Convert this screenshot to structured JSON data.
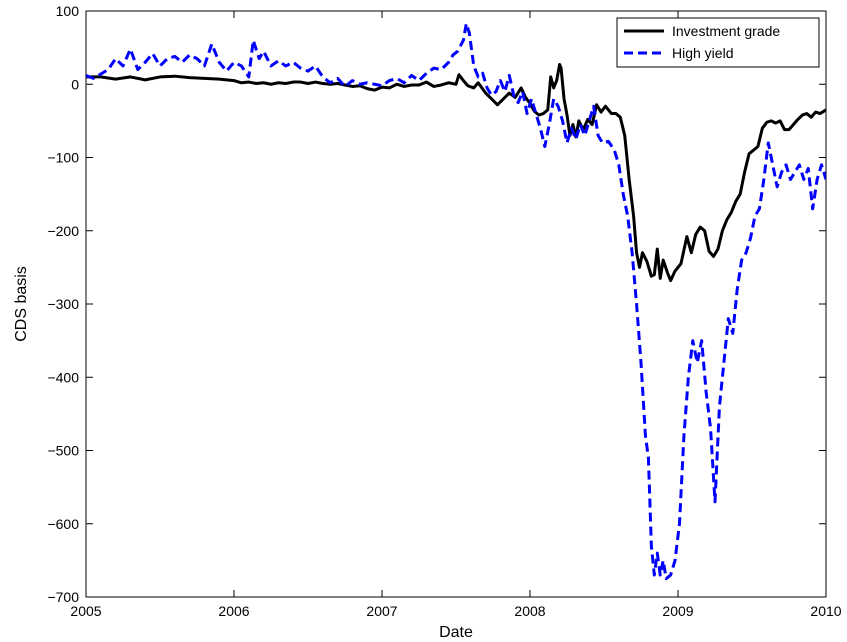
{
  "chart_data": {
    "type": "line",
    "title": "",
    "xlabel": "Date",
    "ylabel": "CDS basis",
    "xlim": [
      2005,
      2010
    ],
    "ylim": [
      -700,
      100
    ],
    "x_ticks": [
      2005,
      2006,
      2007,
      2008,
      2009,
      2010
    ],
    "x_tick_labels": [
      "2005",
      "2006",
      "2007",
      "2008",
      "2009",
      "2010"
    ],
    "y_ticks": [
      100,
      0,
      -100,
      -200,
      -300,
      -400,
      -500,
      -600,
      -700
    ],
    "y_tick_labels": [
      "100",
      "0",
      "−100",
      "−200",
      "−300",
      "−400",
      "−500",
      "−600",
      "−700"
    ],
    "grid": false,
    "legend_position": "top-right",
    "series": [
      {
        "name": "Investment grade",
        "color": "#000000",
        "style": "solid",
        "points": [
          [
            2005.0,
            10
          ],
          [
            2005.1,
            10
          ],
          [
            2005.2,
            7
          ],
          [
            2005.3,
            10
          ],
          [
            2005.4,
            6
          ],
          [
            2005.5,
            10
          ],
          [
            2005.6,
            11
          ],
          [
            2005.7,
            9
          ],
          [
            2005.8,
            8
          ],
          [
            2005.9,
            7
          ],
          [
            2006.0,
            5
          ],
          [
            2006.05,
            2
          ],
          [
            2006.1,
            3
          ],
          [
            2006.15,
            1
          ],
          [
            2006.2,
            2
          ],
          [
            2006.25,
            0
          ],
          [
            2006.3,
            2
          ],
          [
            2006.35,
            1
          ],
          [
            2006.4,
            3
          ],
          [
            2006.45,
            3
          ],
          [
            2006.5,
            1
          ],
          [
            2006.55,
            3
          ],
          [
            2006.6,
            1
          ],
          [
            2006.65,
            0
          ],
          [
            2006.7,
            1
          ],
          [
            2006.75,
            -1
          ],
          [
            2006.8,
            -3
          ],
          [
            2006.85,
            -2
          ],
          [
            2006.9,
            -6
          ],
          [
            2006.95,
            -8
          ],
          [
            2007.0,
            -4
          ],
          [
            2007.05,
            -5
          ],
          [
            2007.1,
            0
          ],
          [
            2007.15,
            -3
          ],
          [
            2007.2,
            -1
          ],
          [
            2007.25,
            -1
          ],
          [
            2007.3,
            3
          ],
          [
            2007.35,
            -3
          ],
          [
            2007.4,
            -1
          ],
          [
            2007.45,
            2
          ],
          [
            2007.5,
            0
          ],
          [
            2007.52,
            13
          ],
          [
            2007.55,
            5
          ],
          [
            2007.58,
            -2
          ],
          [
            2007.62,
            -5
          ],
          [
            2007.65,
            2
          ],
          [
            2007.7,
            -12
          ],
          [
            2007.75,
            -22
          ],
          [
            2007.78,
            -28
          ],
          [
            2007.82,
            -20
          ],
          [
            2007.86,
            -12
          ],
          [
            2007.9,
            -18
          ],
          [
            2007.94,
            -5
          ],
          [
            2007.97,
            -18
          ],
          [
            2008.0,
            -26
          ],
          [
            2008.03,
            -37
          ],
          [
            2008.06,
            -42
          ],
          [
            2008.09,
            -40
          ],
          [
            2008.12,
            -35
          ],
          [
            2008.14,
            10
          ],
          [
            2008.16,
            -5
          ],
          [
            2008.18,
            5
          ],
          [
            2008.2,
            27
          ],
          [
            2008.21,
            22
          ],
          [
            2008.23,
            -20
          ],
          [
            2008.25,
            -42
          ],
          [
            2008.27,
            -70
          ],
          [
            2008.29,
            -55
          ],
          [
            2008.31,
            -72
          ],
          [
            2008.33,
            -50
          ],
          [
            2008.36,
            -62
          ],
          [
            2008.39,
            -48
          ],
          [
            2008.42,
            -55
          ],
          [
            2008.45,
            -28
          ],
          [
            2008.48,
            -38
          ],
          [
            2008.51,
            -30
          ],
          [
            2008.55,
            -40
          ],
          [
            2008.58,
            -40
          ],
          [
            2008.61,
            -45
          ],
          [
            2008.64,
            -70
          ],
          [
            2008.67,
            -130
          ],
          [
            2008.7,
            -180
          ],
          [
            2008.72,
            -230
          ],
          [
            2008.74,
            -250
          ],
          [
            2008.76,
            -230
          ],
          [
            2008.79,
            -242
          ],
          [
            2008.82,
            -262
          ],
          [
            2008.84,
            -260
          ],
          [
            2008.86,
            -225
          ],
          [
            2008.88,
            -265
          ],
          [
            2008.9,
            -240
          ],
          [
            2008.93,
            -258
          ],
          [
            2008.95,
            -268
          ],
          [
            2008.98,
            -255
          ],
          [
            2009.02,
            -245
          ],
          [
            2009.06,
            -208
          ],
          [
            2009.09,
            -230
          ],
          [
            2009.12,
            -205
          ],
          [
            2009.15,
            -195
          ],
          [
            2009.18,
            -200
          ],
          [
            2009.21,
            -228
          ],
          [
            2009.24,
            -235
          ],
          [
            2009.27,
            -225
          ],
          [
            2009.3,
            -200
          ],
          [
            2009.33,
            -185
          ],
          [
            2009.36,
            -175
          ],
          [
            2009.39,
            -160
          ],
          [
            2009.42,
            -150
          ],
          [
            2009.45,
            -120
          ],
          [
            2009.48,
            -95
          ],
          [
            2009.51,
            -90
          ],
          [
            2009.54,
            -85
          ],
          [
            2009.57,
            -60
          ],
          [
            2009.6,
            -52
          ],
          [
            2009.63,
            -50
          ],
          [
            2009.66,
            -53
          ],
          [
            2009.69,
            -50
          ],
          [
            2009.72,
            -62
          ],
          [
            2009.75,
            -62
          ],
          [
            2009.78,
            -55
          ],
          [
            2009.81,
            -48
          ],
          [
            2009.84,
            -42
          ],
          [
            2009.87,
            -40
          ],
          [
            2009.9,
            -45
          ],
          [
            2009.93,
            -38
          ],
          [
            2009.96,
            -40
          ],
          [
            2010.0,
            -35
          ]
        ]
      },
      {
        "name": "High yield",
        "color": "#0000ff",
        "style": "dashed",
        "points": [
          [
            2005.0,
            12
          ],
          [
            2005.05,
            8
          ],
          [
            2005.1,
            14
          ],
          [
            2005.15,
            20
          ],
          [
            2005.2,
            35
          ],
          [
            2005.25,
            25
          ],
          [
            2005.3,
            48
          ],
          [
            2005.35,
            20
          ],
          [
            2005.4,
            30
          ],
          [
            2005.45,
            42
          ],
          [
            2005.5,
            25
          ],
          [
            2005.55,
            35
          ],
          [
            2005.6,
            38
          ],
          [
            2005.65,
            30
          ],
          [
            2005.7,
            40
          ],
          [
            2005.75,
            35
          ],
          [
            2005.8,
            25
          ],
          [
            2005.85,
            55
          ],
          [
            2005.9,
            30
          ],
          [
            2005.95,
            18
          ],
          [
            2006.0,
            30
          ],
          [
            2006.05,
            25
          ],
          [
            2006.1,
            10
          ],
          [
            2006.13,
            60
          ],
          [
            2006.17,
            35
          ],
          [
            2006.2,
            45
          ],
          [
            2006.25,
            25
          ],
          [
            2006.3,
            32
          ],
          [
            2006.35,
            25
          ],
          [
            2006.4,
            30
          ],
          [
            2006.45,
            22
          ],
          [
            2006.5,
            18
          ],
          [
            2006.55,
            25
          ],
          [
            2006.6,
            10
          ],
          [
            2006.65,
            2
          ],
          [
            2006.7,
            8
          ],
          [
            2006.75,
            -3
          ],
          [
            2006.8,
            5
          ],
          [
            2006.85,
            0
          ],
          [
            2006.9,
            2
          ],
          [
            2006.95,
            0
          ],
          [
            2007.0,
            -2
          ],
          [
            2007.05,
            5
          ],
          [
            2007.1,
            8
          ],
          [
            2007.15,
            2
          ],
          [
            2007.2,
            12
          ],
          [
            2007.25,
            5
          ],
          [
            2007.3,
            15
          ],
          [
            2007.35,
            22
          ],
          [
            2007.4,
            20
          ],
          [
            2007.45,
            30
          ],
          [
            2007.48,
            40
          ],
          [
            2007.51,
            45
          ],
          [
            2007.55,
            60
          ],
          [
            2007.57,
            83
          ],
          [
            2007.59,
            70
          ],
          [
            2007.62,
            25
          ],
          [
            2007.65,
            10
          ],
          [
            2007.68,
            15
          ],
          [
            2007.71,
            -5
          ],
          [
            2007.74,
            -15
          ],
          [
            2007.77,
            -10
          ],
          [
            2007.8,
            5
          ],
          [
            2007.83,
            -10
          ],
          [
            2007.86,
            12
          ],
          [
            2007.89,
            -15
          ],
          [
            2007.92,
            -25
          ],
          [
            2007.95,
            -10
          ],
          [
            2007.98,
            -40
          ],
          [
            2008.01,
            -20
          ],
          [
            2008.04,
            -40
          ],
          [
            2008.07,
            -60
          ],
          [
            2008.1,
            -85
          ],
          [
            2008.13,
            -55
          ],
          [
            2008.16,
            -20
          ],
          [
            2008.19,
            -30
          ],
          [
            2008.22,
            -50
          ],
          [
            2008.25,
            -80
          ],
          [
            2008.28,
            -60
          ],
          [
            2008.31,
            -75
          ],
          [
            2008.34,
            -55
          ],
          [
            2008.37,
            -70
          ],
          [
            2008.4,
            -50
          ],
          [
            2008.43,
            -30
          ],
          [
            2008.46,
            -70
          ],
          [
            2008.49,
            -80
          ],
          [
            2008.53,
            -78
          ],
          [
            2008.57,
            -90
          ],
          [
            2008.6,
            -110
          ],
          [
            2008.63,
            -150
          ],
          [
            2008.66,
            -180
          ],
          [
            2008.69,
            -230
          ],
          [
            2008.72,
            -300
          ],
          [
            2008.75,
            -380
          ],
          [
            2008.78,
            -480
          ],
          [
            2008.8,
            -510
          ],
          [
            2008.82,
            -630
          ],
          [
            2008.84,
            -670
          ],
          [
            2008.86,
            -640
          ],
          [
            2008.88,
            -670
          ],
          [
            2008.9,
            -650
          ],
          [
            2008.92,
            -675
          ],
          [
            2008.95,
            -670
          ],
          [
            2008.98,
            -650
          ],
          [
            2009.01,
            -600
          ],
          [
            2009.04,
            -480
          ],
          [
            2009.07,
            -400
          ],
          [
            2009.1,
            -350
          ],
          [
            2009.13,
            -380
          ],
          [
            2009.16,
            -350
          ],
          [
            2009.19,
            -420
          ],
          [
            2009.22,
            -470
          ],
          [
            2009.25,
            -570
          ],
          [
            2009.28,
            -440
          ],
          [
            2009.31,
            -380
          ],
          [
            2009.34,
            -320
          ],
          [
            2009.37,
            -340
          ],
          [
            2009.4,
            -280
          ],
          [
            2009.43,
            -240
          ],
          [
            2009.46,
            -230
          ],
          [
            2009.49,
            -210
          ],
          [
            2009.52,
            -180
          ],
          [
            2009.55,
            -170
          ],
          [
            2009.58,
            -130
          ],
          [
            2009.61,
            -80
          ],
          [
            2009.64,
            -110
          ],
          [
            2009.67,
            -140
          ],
          [
            2009.7,
            -120
          ],
          [
            2009.73,
            -110
          ],
          [
            2009.76,
            -130
          ],
          [
            2009.79,
            -120
          ],
          [
            2009.82,
            -110
          ],
          [
            2009.85,
            -130
          ],
          [
            2009.88,
            -115
          ],
          [
            2009.91,
            -170
          ],
          [
            2009.94,
            -130
          ],
          [
            2009.97,
            -110
          ],
          [
            2010.0,
            -130
          ]
        ]
      }
    ]
  }
}
